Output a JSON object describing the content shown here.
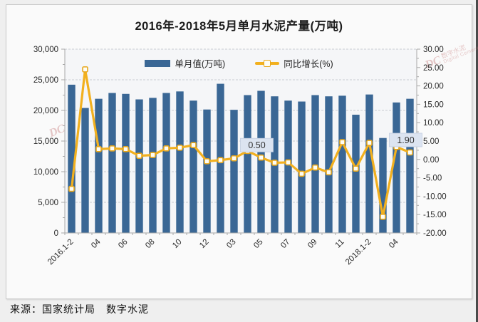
{
  "title": "2016年-2018年5月单月水泥产量(万吨)",
  "source": "来源：国家统计局　数字水泥",
  "watermark": {
    "abbr": "DC",
    "name": "数字水泥",
    "caption": "Digital Cement"
  },
  "colors": {
    "bar": "#3a6795",
    "line": "#f2b01e",
    "marker_fill": "#fdfdf5",
    "marker_stroke": "#e8a71c",
    "grid": "#c9ccd2",
    "axis": "#a8a8a8",
    "plot_bg": "#f5f6f8",
    "annotation_bg": "#dce4f1",
    "annotation_border": "#c2cde0",
    "text": "#2a2a2a"
  },
  "chart_data": {
    "type": "bar+line combo",
    "title": "2016年-2018年5月单月水泥产量(万吨)",
    "categories": [
      "2016.1-2",
      "2016.03",
      "2016.04",
      "2016.05",
      "2016.06",
      "2016.07",
      "2016.08",
      "2016.09",
      "2016.10",
      "2016.11",
      "2016.12",
      "2017.1-2",
      "2017.03",
      "2017.04",
      "2017.05",
      "2017.06",
      "2017.07",
      "2017.08",
      "2017.09",
      "2017.10",
      "2017.11",
      "2017.12",
      "2018.1-2",
      "2018.03",
      "2018.04",
      "2018.05"
    ],
    "x_tick_indices": [
      0,
      2,
      4,
      6,
      8,
      10,
      12,
      14,
      16,
      18,
      20,
      22,
      24
    ],
    "x_tick_labels": [
      "2016.1-2",
      "04",
      "06",
      "08",
      "10",
      "12",
      "03",
      "05",
      "07",
      "09",
      "11",
      "2018.1-2",
      "04"
    ],
    "series": [
      {
        "name": "单月值(万吨)",
        "type": "bar",
        "axis": "left",
        "values": [
          24200,
          20400,
          21900,
          22850,
          22700,
          21800,
          22050,
          22850,
          23100,
          21600,
          20150,
          24350,
          20100,
          22500,
          23200,
          22300,
          21600,
          21450,
          22500,
          22300,
          22400,
          19300,
          22600,
          15500,
          21300,
          21900
        ]
      },
      {
        "name": "同比增长(%)",
        "type": "line",
        "axis": "right",
        "values": [
          -8.0,
          24.5,
          2.8,
          3.0,
          2.8,
          1.0,
          1.2,
          3.0,
          3.2,
          3.9,
          -0.5,
          -0.2,
          0.3,
          2.3,
          0.5,
          -0.9,
          -0.8,
          -3.9,
          -2.2,
          -3.5,
          4.7,
          -2.5,
          4.5,
          -15.6,
          3.4,
          1.9
        ]
      }
    ],
    "left_axis": {
      "min": 0,
      "max": 30000,
      "step": 5000,
      "tick_labels": [
        "0",
        "5,000",
        "10,000",
        "15,000",
        "20,000",
        "25,000",
        "30,000"
      ]
    },
    "right_axis": {
      "min": -20,
      "max": 30,
      "step": 5,
      "tick_labels": [
        "-20.00",
        "-15.00",
        "-10.00",
        "-5.00",
        "0.00",
        "5.00",
        "10.00",
        "15.00",
        "20.00",
        "25.00",
        "30.00"
      ]
    },
    "annotations": [
      {
        "series": 1,
        "index": 14,
        "text": "0.50"
      },
      {
        "series": 1,
        "index": 25,
        "text": "1.90"
      }
    ],
    "grid": "horizontal-dashed",
    "legend_position": "top-center"
  }
}
